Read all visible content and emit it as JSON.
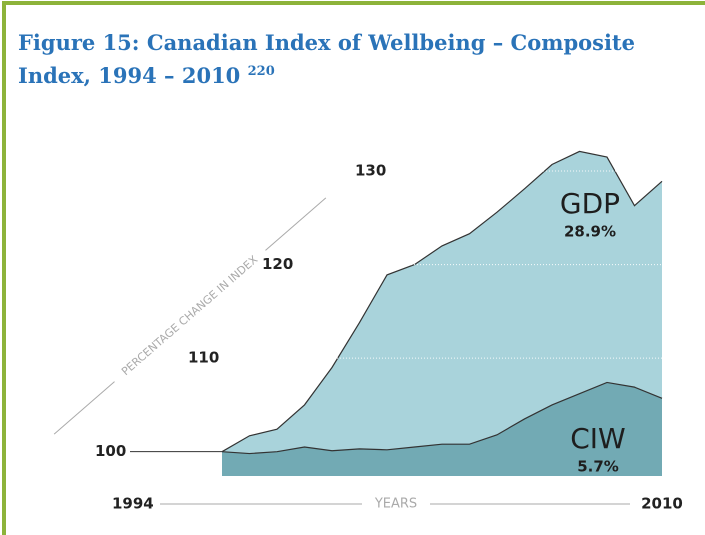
{
  "chart_data": {
    "type": "area",
    "title": "Figure 15: Canadian Index of Wellbeing – Composite Index, 1994 – 2010",
    "title_note": "220",
    "y_label": "PERCENTAGE CHANGE IN INDEX",
    "x_label": "YEARS",
    "x": [
      1994,
      1995,
      1996,
      1997,
      1998,
      1999,
      2000,
      2001,
      2002,
      2003,
      2004,
      2005,
      2006,
      2007,
      2008,
      2009,
      2010
    ],
    "xlim": [
      1994,
      2010
    ],
    "xticks": [
      1994,
      2010
    ],
    "ylim": [
      97.4,
      133
    ],
    "yticks": [
      100,
      110,
      120,
      130
    ],
    "series": [
      {
        "name": "GDP",
        "color": "#a9d3db",
        "values": [
          100,
          101.7,
          102.4,
          105,
          109,
          113.8,
          118.9,
          120,
          122,
          123.3,
          125.6,
          128.1,
          130.7,
          132.1,
          131.5,
          126.3,
          128.9
        ]
      },
      {
        "name": "CIW",
        "color": "#72aab4",
        "values": [
          100,
          99.8,
          100,
          100.5,
          100.1,
          100.3,
          100.2,
          100.5,
          100.8,
          100.8,
          101.8,
          103.5,
          105,
          106.2,
          107.4,
          106.9,
          105.7
        ]
      }
    ],
    "value_labels": [
      "28.9%",
      "5.7%"
    ]
  }
}
